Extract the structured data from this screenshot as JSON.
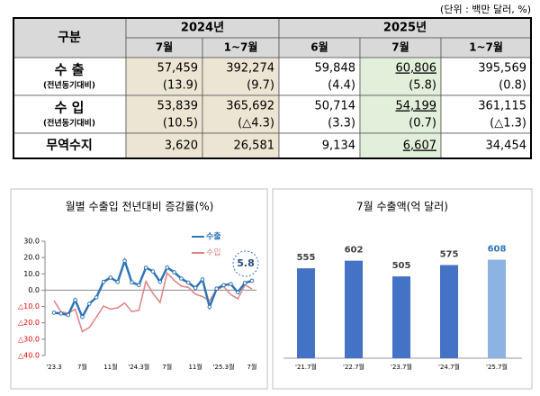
{
  "table": {
    "unit": "(단위 : 백만 달러, %)",
    "header_top": [
      "구분",
      "2024년",
      "2025년"
    ],
    "header_sub": [
      "7월",
      "1~7월",
      "6월",
      "7월",
      "1~7월"
    ],
    "rows": [
      {
        "label": "수 출",
        "sublabel": "(전년동기대비)",
        "cells": [
          [
            "57,459",
            "(13.9)"
          ],
          [
            "392,274",
            "(9.7)"
          ],
          [
            "59,848",
            "(4.4)"
          ],
          [
            "60,806",
            "(5.8)"
          ],
          [
            "395,569",
            "(0.8)"
          ]
        ]
      },
      {
        "label": "수 입",
        "sublabel": "(전년동기대비)",
        "cells": [
          [
            "53,839",
            "(10.5)"
          ],
          [
            "365,692",
            "(△4.3)"
          ],
          [
            "50,714",
            "(3.3)"
          ],
          [
            "54,199",
            "(0.7)"
          ],
          [
            "361,115",
            "(△1.3)"
          ]
        ]
      },
      {
        "label": "무역수지",
        "cells": [
          [
            "3,620"
          ],
          [
            "26,581"
          ],
          [
            "9,134"
          ],
          [
            "6,607"
          ],
          [
            "34,454"
          ]
        ]
      }
    ]
  },
  "chart_data": [
    {
      "type": "line",
      "title": "월별 수출입 전년대비 증감률(%)",
      "categories": [
        "'23.3",
        null,
        null,
        null,
        "7월",
        null,
        null,
        null,
        "11월",
        null,
        null,
        null,
        "'24.3월",
        null,
        null,
        null,
        "7월",
        null,
        null,
        null,
        "11월",
        null,
        null,
        null,
        "'25.3월",
        null,
        null,
        null,
        "7월"
      ],
      "series": [
        {
          "name": "수출",
          "color": "#2e75b6",
          "values": [
            -13.8,
            -14.3,
            -15.2,
            -6.0,
            -16.4,
            -8.3,
            -4.4,
            5.1,
            7.7,
            5.0,
            18.0,
            4.8,
            3.1,
            13.8,
            11.5,
            5.1,
            13.9,
            11.0,
            7.1,
            4.6,
            1.4,
            6.6,
            -10.2,
            1.0,
            3.1,
            3.7,
            -1.3,
            4.4,
            5.8
          ]
        },
        {
          "name": "수입",
          "color": "#e08080",
          "values": [
            -6.4,
            -13.3,
            -14.0,
            -11.7,
            -25.4,
            -22.8,
            -16.5,
            -9.7,
            -11.6,
            -10.8,
            -7.8,
            -13.1,
            -12.3,
            5.4,
            -2.0,
            -7.5,
            10.5,
            6.0,
            2.5,
            1.7,
            -2.4,
            -3.9,
            -6.4,
            0.2,
            2.3,
            -2.7,
            -5.3,
            3.3,
            0.7
          ]
        }
      ],
      "ylim": [
        -40,
        30
      ],
      "yticks": [
        {
          "value": 30,
          "label": "30.0"
        },
        {
          "value": 20,
          "label": "20.0"
        },
        {
          "value": 10,
          "label": "10.0"
        },
        {
          "value": 0,
          "label": "0.0"
        },
        {
          "value": -10,
          "label": "△10.0"
        },
        {
          "value": -20,
          "label": "△20.0"
        },
        {
          "value": -30,
          "label": "△30.0"
        },
        {
          "value": -40,
          "label": "△40.0"
        }
      ]
    },
    {
      "type": "bar",
      "title": "7월 수출액(억 달러)",
      "categories": [
        "'21.7월",
        "'22.7월",
        "'23.7월",
        "'24.7월",
        "'25.7월"
      ],
      "values": [
        555,
        602,
        505,
        575,
        608
      ],
      "colors": [
        "#4472c4",
        "#4472c4",
        "#4472c4",
        "#4472c4",
        "#8db3e2"
      ]
    }
  ]
}
